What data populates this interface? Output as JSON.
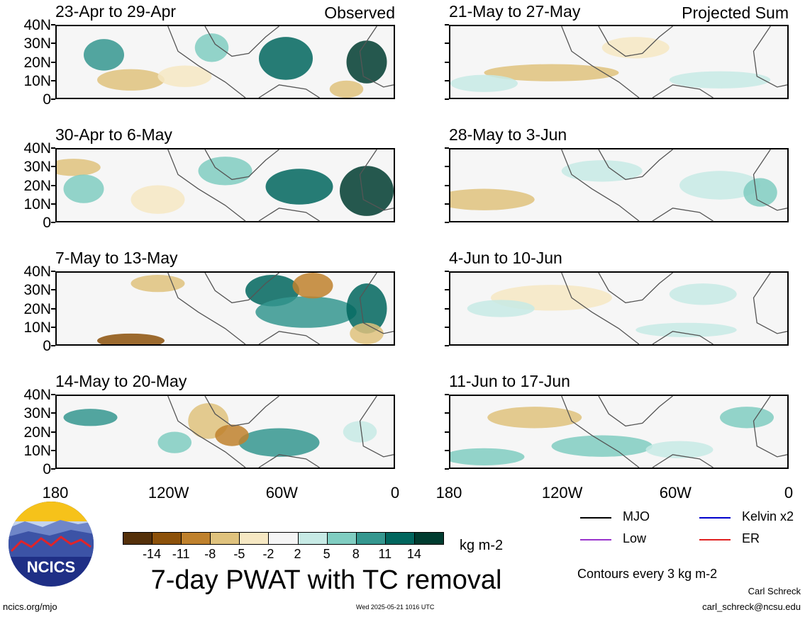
{
  "chart_data": {
    "type": "heatmap",
    "title": "7-day PWAT with TC removal",
    "units": "kg m-2",
    "y_ticks": [
      "40N",
      "30N",
      "20N",
      "10N",
      "0"
    ],
    "x_ticks": [
      "180",
      "120W",
      "60W",
      "0"
    ],
    "observed_tag": "Observed",
    "projected_tag": "Projected Sum",
    "panels_left": [
      "23-Apr to 29-Apr",
      "30-Apr to 6-May",
      "7-May to 13-May",
      "14-May to 20-May"
    ],
    "panels_right": [
      "21-May to 27-May",
      "28-May to 3-Jun",
      "4-Jun to 10-Jun",
      "11-Jun to 17-Jun"
    ],
    "colorbar": {
      "ticks": [
        "-14",
        "-11",
        "-8",
        "-5",
        "-2",
        "2",
        "5",
        "8",
        "11",
        "14"
      ],
      "colors": [
        "#54300a",
        "#8c510a",
        "#bf812d",
        "#dfc27d",
        "#f6e8c3",
        "#f5f5f5",
        "#c7eae5",
        "#80cdc1",
        "#35978f",
        "#01665e",
        "#003c30"
      ]
    },
    "contour_legend": {
      "items": [
        {
          "label": "MJO",
          "color": "#000000"
        },
        {
          "label": "Kelvin x2",
          "color": "#0000cc"
        },
        {
          "label": "Low",
          "color": "#9933cc"
        },
        {
          "label": "ER",
          "color": "#e02020"
        }
      ],
      "note": "Contours every 3 kg m-2"
    }
  },
  "branding": {
    "logo_text": "NCICS",
    "url": "ncics.org/mjo",
    "timestamp": "Wed 2025-05-21 1016 UTC",
    "author": "Carl Schreck",
    "email": "carl_schreck@ncsu.edu"
  }
}
